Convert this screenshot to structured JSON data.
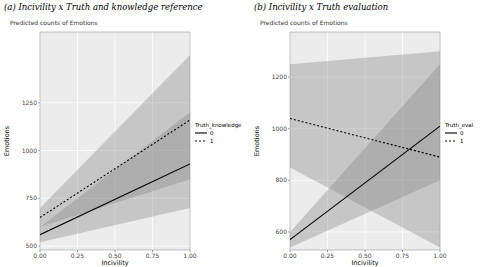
{
  "chart_data": [
    {
      "type": "line",
      "title": "(a) Incivility x Truth and knowledge reference",
      "subtitle": "Predicted counts of Emotions",
      "x_label": "Incivility",
      "y_label": "Emotions",
      "legend_title": "Truth_knowledge",
      "x": [
        0,
        1
      ],
      "xlim": [
        0,
        1
      ],
      "xticks": [
        {
          "value": 0,
          "label": "0.00"
        },
        {
          "value": 0.25,
          "label": "0.25"
        },
        {
          "value": 0.5,
          "label": "0.50"
        },
        {
          "value": 0.75,
          "label": "0.75"
        },
        {
          "value": 1,
          "label": "1.00"
        }
      ],
      "ylim": [
        480,
        1620
      ],
      "yticks": [
        500,
        750,
        1000,
        1250
      ],
      "legend": "right",
      "series": [
        {
          "name": "0",
          "color": "#000000",
          "line_style": "solid",
          "values": [
            560,
            930
          ],
          "lower": [
            520,
            700
          ],
          "upper": [
            600,
            1200
          ]
        },
        {
          "name": "1",
          "color": "#000000",
          "line_style": "dotted",
          "values": [
            650,
            1160
          ],
          "lower": [
            600,
            850
          ],
          "upper": [
            700,
            1500
          ]
        }
      ]
    },
    {
      "type": "line",
      "title": "(b) Incivility x Truth evaluation",
      "subtitle": "Predicted counts of Emotions",
      "x_label": "Incivility",
      "y_label": "Emotions",
      "legend_title": "Truth_eval",
      "x": [
        0,
        1
      ],
      "xlim": [
        0,
        1
      ],
      "xticks": [
        {
          "value": 0,
          "label": "0.00"
        },
        {
          "value": 0.25,
          "label": "0.25"
        },
        {
          "value": 0.5,
          "label": "0.50"
        },
        {
          "value": 0.75,
          "label": "0.75"
        },
        {
          "value": 1,
          "label": "1.00"
        }
      ],
      "ylim": [
        530,
        1375
      ],
      "yticks": [
        600,
        800,
        1000,
        1200
      ],
      "legend": "right",
      "series": [
        {
          "name": "0",
          "color": "#000000",
          "line_style": "solid",
          "values": [
            570,
            1010
          ],
          "lower": [
            540,
            800
          ],
          "upper": [
            600,
            1250
          ]
        },
        {
          "name": "1",
          "color": "#000000",
          "line_style": "dotted",
          "values": [
            1040,
            890
          ],
          "lower": [
            850,
            540
          ],
          "upper": [
            1250,
            1300
          ]
        }
      ]
    }
  ]
}
